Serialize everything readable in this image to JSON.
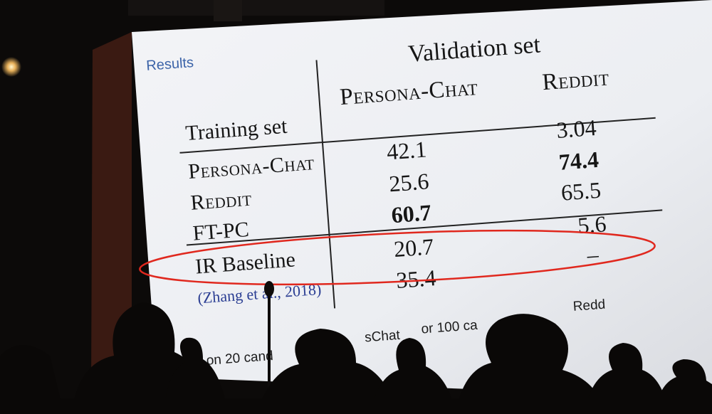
{
  "slide": {
    "section_label": "Results",
    "validation_header": "Validation set",
    "training_header": "Training set",
    "columns": [
      "Persona-Chat",
      "Reddit"
    ],
    "rows": [
      {
        "label": "Persona-Chat",
        "small_caps": true,
        "values": [
          "42.1",
          "3.04"
        ],
        "bold": [
          false,
          false
        ]
      },
      {
        "label": "Reddit",
        "small_caps": true,
        "values": [
          "25.6",
          "74.4"
        ],
        "bold": [
          false,
          true
        ]
      },
      {
        "label": "FT-PC",
        "small_caps": false,
        "values": [
          "60.7",
          "65.5"
        ],
        "bold": [
          true,
          false
        ]
      },
      {
        "label": "IR Baseline",
        "small_caps": false,
        "values": [
          "20.7",
          "5.6"
        ],
        "bold": [
          false,
          false
        ]
      },
      {
        "label": "(Zhang et al., 2018)",
        "small_caps": false,
        "values": [
          "35.4",
          "–"
        ],
        "bold": [
          false,
          false
        ]
      }
    ],
    "footnote_fragments": [
      "1 on 20 cand",
      "sChat",
      "or 100 ca",
      "Redd"
    ]
  },
  "colors": {
    "highlight_ellipse": "#e0281e",
    "section_label": "#3b63a8",
    "citation": "#2b3e93"
  }
}
